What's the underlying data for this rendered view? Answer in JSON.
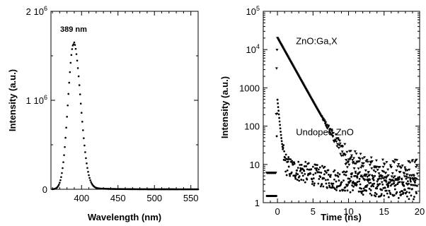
{
  "chart_data": [
    {
      "type": "scatter",
      "xlabel": "Wavelength (nm)",
      "ylabel": "Intensity (a.u.)",
      "xlim": [
        358,
        560
      ],
      "ylim": [
        0,
        2000000
      ],
      "x_ticks": [
        {
          "value": 400,
          "label": "400"
        },
        {
          "value": 450,
          "label": "450"
        },
        {
          "value": 500,
          "label": "500"
        },
        {
          "value": 550,
          "label": "550"
        }
      ],
      "y_ticks": [
        {
          "value": 0,
          "base": "0",
          "exp": ""
        },
        {
          "value": 1000000,
          "base": "1 10",
          "exp": "6"
        },
        {
          "value": 2000000,
          "base": "2 10",
          "exp": "6"
        }
      ],
      "annotations": [
        {
          "text": "389 nm",
          "x": 389,
          "y": 1800000
        }
      ],
      "series": [
        {
          "peak": {
            "x": 389,
            "y": 1630000,
            "fwhm_nm": 18
          },
          "x_range": [
            360,
            560
          ],
          "step": 1
        }
      ]
    },
    {
      "type": "scatter",
      "xlabel": "Time (ns)",
      "ylabel": "Intensity (a.u.)",
      "y_scale": "log",
      "xlim": [
        -2,
        20
      ],
      "ylim": [
        1,
        100000
      ],
      "x_ticks": [
        {
          "value": 0,
          "label": "0"
        },
        {
          "value": 5,
          "label": "5"
        },
        {
          "value": 10,
          "label": "10"
        },
        {
          "value": 15,
          "label": "15"
        },
        {
          "value": 20,
          "label": "20"
        }
      ],
      "y_ticks": [
        {
          "value": 1,
          "base": "1",
          "exp": ""
        },
        {
          "value": 10,
          "base": "10",
          "exp": ""
        },
        {
          "value": 100,
          "base": "100",
          "exp": ""
        },
        {
          "value": 1000,
          "base": "1000",
          "exp": ""
        },
        {
          "value": 10000,
          "base": "10",
          "exp": "4"
        },
        {
          "value": 100000,
          "base": "10",
          "exp": "5"
        }
      ],
      "annotations": [
        {
          "text": "ZnO:Ga,X",
          "x": 2.6,
          "y": 14000
        },
        {
          "text": "Undoped ZnO",
          "x": 2.6,
          "y": 58
        }
      ],
      "series": [
        {
          "name": "ZnO:Ga,X",
          "marker": "triangle-down",
          "baseline": 6,
          "peak": 20000,
          "decay_ns": 1.3,
          "x_range": [
            -1.5,
            19.7
          ]
        },
        {
          "name": "Undoped ZnO",
          "marker": "circle",
          "baseline": 1.5,
          "peak": 480,
          "decay_ns": 0.22,
          "tail": 8,
          "tail_decay_ns": 6,
          "x_range": [
            -1.5,
            19.7
          ]
        }
      ]
    }
  ]
}
